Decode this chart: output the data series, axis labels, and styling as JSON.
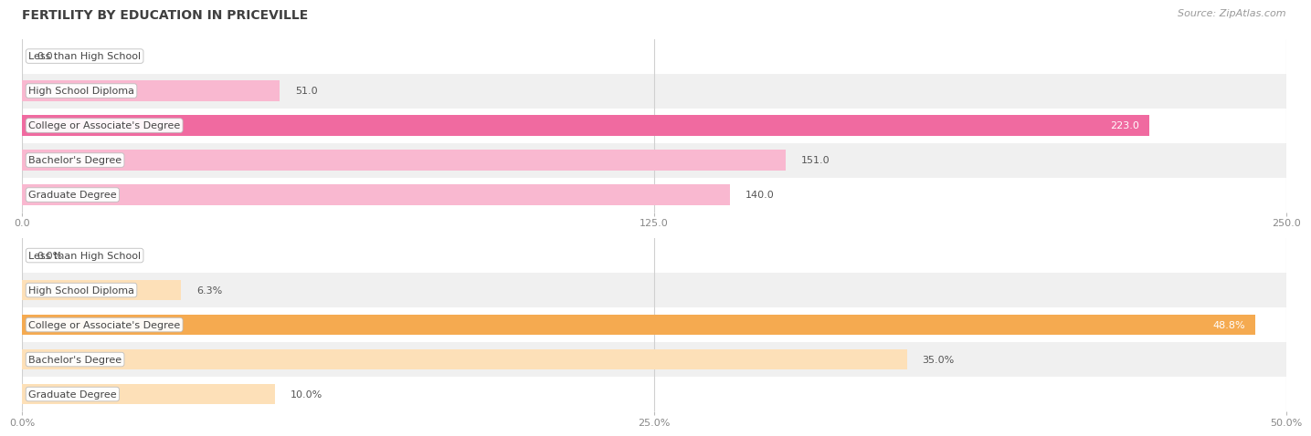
{
  "title": "FERTILITY BY EDUCATION IN PRICEVILLE",
  "source": "Source: ZipAtlas.com",
  "top_chart": {
    "categories": [
      "Less than High School",
      "High School Diploma",
      "College or Associate's Degree",
      "Bachelor's Degree",
      "Graduate Degree"
    ],
    "values": [
      0.0,
      51.0,
      223.0,
      151.0,
      140.0
    ],
    "xlim": [
      0,
      250
    ],
    "xticks": [
      0.0,
      125.0,
      250.0
    ],
    "xtick_labels": [
      "0.0",
      "125.0",
      "250.0"
    ],
    "bar_color_low": "#f9b8d0",
    "bar_color_high": "#f06aa0",
    "threshold": 200
  },
  "bottom_chart": {
    "categories": [
      "Less than High School",
      "High School Diploma",
      "College or Associate's Degree",
      "Bachelor's Degree",
      "Graduate Degree"
    ],
    "values": [
      0.0,
      6.3,
      48.8,
      35.0,
      10.0
    ],
    "xlim": [
      0,
      50
    ],
    "xticks": [
      0.0,
      25.0,
      50.0
    ],
    "xtick_labels": [
      "0.0%",
      "25.0%",
      "50.0%"
    ],
    "bar_color_low": "#fde0b8",
    "bar_color_high": "#f5aa50",
    "threshold": 40
  },
  "label_fontsize": 8,
  "value_fontsize": 8,
  "title_fontsize": 10,
  "source_fontsize": 8,
  "bar_height": 0.6,
  "row_bg_even": "#ffffff",
  "row_bg_odd": "#f0f0f0"
}
